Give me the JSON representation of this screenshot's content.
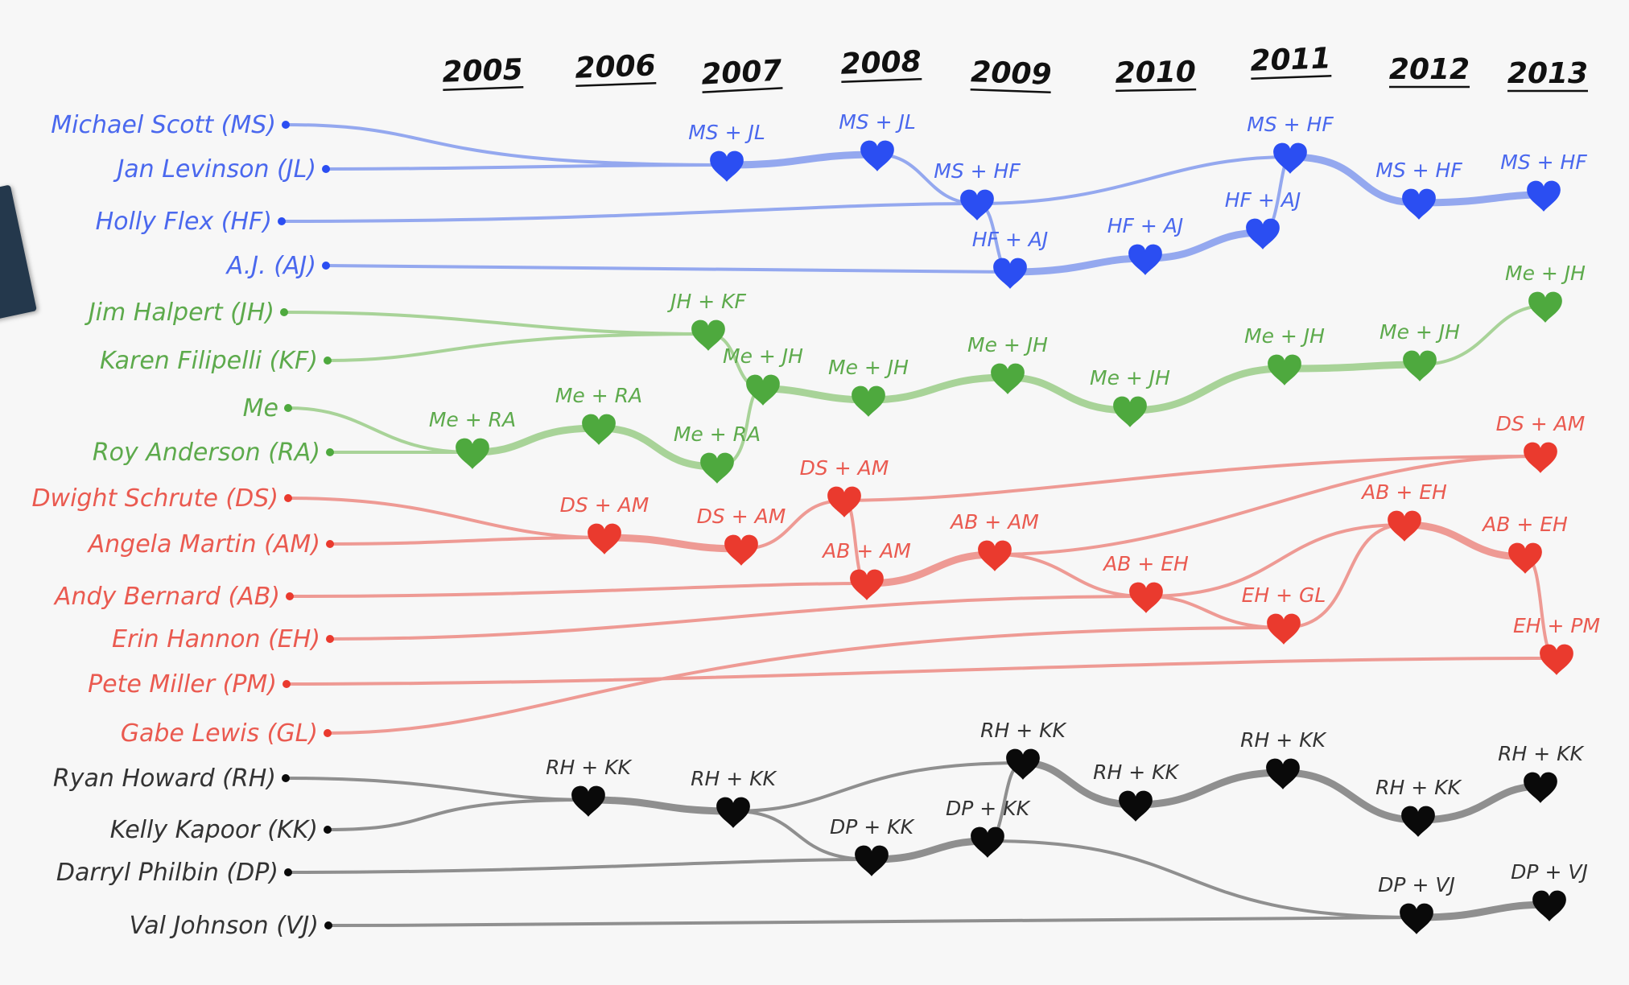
{
  "years": [
    "2005",
    "2006",
    "2007",
    "2008",
    "2009",
    "2010",
    "2011",
    "2012",
    "2013"
  ],
  "groups": {
    "blue": {
      "line": "#94a8ef",
      "heart": "#2b4ef2",
      "text": "#4a68ee"
    },
    "green": {
      "line": "#a8d398",
      "heart": "#4ea93e",
      "text": "#5daa4c"
    },
    "red": {
      "line": "#ee9a94",
      "heart": "#ea3a2e",
      "text": "#ea5a50"
    },
    "black": {
      "line": "#8f8f8f",
      "heart": "#0a0a0a",
      "text": "#333333"
    }
  },
  "people": [
    {
      "id": "MS",
      "label": "Michael Scott (MS)",
      "group": "blue"
    },
    {
      "id": "JL",
      "label": "Jan Levinson (JL)",
      "group": "blue"
    },
    {
      "id": "HF",
      "label": "Holly Flex (HF)",
      "group": "blue"
    },
    {
      "id": "AJ",
      "label": "A.J. (AJ)",
      "group": "blue"
    },
    {
      "id": "JH",
      "label": "Jim Halpert (JH)",
      "group": "green"
    },
    {
      "id": "KF",
      "label": "Karen Filipelli (KF)",
      "group": "green"
    },
    {
      "id": "Me",
      "label": "Me",
      "group": "green"
    },
    {
      "id": "RA",
      "label": "Roy Anderson (RA)",
      "group": "green"
    },
    {
      "id": "DS",
      "label": "Dwight Schrute (DS)",
      "group": "red"
    },
    {
      "id": "AM",
      "label": "Angela Martin (AM)",
      "group": "red"
    },
    {
      "id": "AB",
      "label": "Andy Bernard (AB)",
      "group": "red"
    },
    {
      "id": "EH",
      "label": "Erin Hannon (EH)",
      "group": "red"
    },
    {
      "id": "PM",
      "label": "Pete Miller (PM)",
      "group": "red"
    },
    {
      "id": "GL",
      "label": "Gabe Lewis (GL)",
      "group": "red"
    },
    {
      "id": "RH",
      "label": "Ryan Howard (RH)",
      "group": "black"
    },
    {
      "id": "KK",
      "label": "Kelly Kapoor (KK)",
      "group": "black"
    },
    {
      "id": "DP",
      "label": "Darryl Philbin (DP)",
      "group": "black"
    },
    {
      "id": "VJ",
      "label": "Val Johnson (VJ)",
      "group": "black"
    }
  ],
  "couples": [
    {
      "label": "MS + JL",
      "group": "blue",
      "year": 2007.1
    },
    {
      "label": "MS + JL",
      "group": "blue",
      "year": 2008.0
    },
    {
      "label": "MS + HF",
      "group": "blue",
      "year": 2008.75
    },
    {
      "label": "HF + AJ",
      "group": "blue",
      "year": 2009.0
    },
    {
      "label": "HF + AJ",
      "group": "blue",
      "year": 2010.0
    },
    {
      "label": "HF + AJ",
      "group": "blue",
      "year": 2010.85
    },
    {
      "label": "MS + HF",
      "group": "blue",
      "year": 2011.0
    },
    {
      "label": "MS + HF",
      "group": "blue",
      "year": 2012.0
    },
    {
      "label": "MS + HF",
      "group": "blue",
      "year": 2012.95
    },
    {
      "label": "JH + KF",
      "group": "green",
      "year": 2006.9
    },
    {
      "label": "Me + RA",
      "group": "green",
      "year": 2005.0
    },
    {
      "label": "Me + RA",
      "group": "green",
      "year": 2005.95
    },
    {
      "label": "Me + RA",
      "group": "green",
      "year": 2006.9
    },
    {
      "label": "Me + JH",
      "group": "green",
      "year": 2007.2
    },
    {
      "label": "Me + JH",
      "group": "green",
      "year": 2008.0
    },
    {
      "label": "Me + JH",
      "group": "green",
      "year": 2009.0
    },
    {
      "label": "Me + JH",
      "group": "green",
      "year": 2009.95
    },
    {
      "label": "Me + JH",
      "group": "green",
      "year": 2011.0
    },
    {
      "label": "Me + JH",
      "group": "green",
      "year": 2012.0
    },
    {
      "label": "Me + JH",
      "group": "green",
      "year": 2012.95
    },
    {
      "label": "DS + AM",
      "group": "red",
      "year": 2006.0
    },
    {
      "label": "DS + AM",
      "group": "red",
      "year": 2006.9
    },
    {
      "label": "DS + AM",
      "group": "red",
      "year": 2007.85
    },
    {
      "label": "DS + AM",
      "group": "red",
      "year": 2012.95
    },
    {
      "label": "AB + AM",
      "group": "red",
      "year": 2008.0
    },
    {
      "label": "AB + AM",
      "group": "red",
      "year": 2009.0
    },
    {
      "label": "AB + EH",
      "group": "red",
      "year": 2010.0
    },
    {
      "label": "AB + EH",
      "group": "red",
      "year": 2011.95
    },
    {
      "label": "AB + EH",
      "group": "red",
      "year": 2012.9
    },
    {
      "label": "EH + GL",
      "group": "red",
      "year": 2011.0
    },
    {
      "label": "EH + PM",
      "group": "red",
      "year": 2013.0
    },
    {
      "label": "RH + KK",
      "group": "black",
      "year": 2005.95
    },
    {
      "label": "RH + KK",
      "group": "black",
      "year": 2006.9
    },
    {
      "label": "RH + KK",
      "group": "black",
      "year": 2009.0
    },
    {
      "label": "RH + KK",
      "group": "black",
      "year": 2009.95
    },
    {
      "label": "RH + KK",
      "group": "black",
      "year": 2011.0
    },
    {
      "label": "RH + KK",
      "group": "black",
      "year": 2012.0
    },
    {
      "label": "RH + KK",
      "group": "black",
      "year": 2012.95
    },
    {
      "label": "DP + KK",
      "group": "black",
      "year": 2007.95
    },
    {
      "label": "DP + KK",
      "group": "black",
      "year": 2008.9
    },
    {
      "label": "DP + VJ",
      "group": "black",
      "year": 2012.0
    },
    {
      "label": "DP + VJ",
      "group": "black",
      "year": 2013.0
    }
  ]
}
